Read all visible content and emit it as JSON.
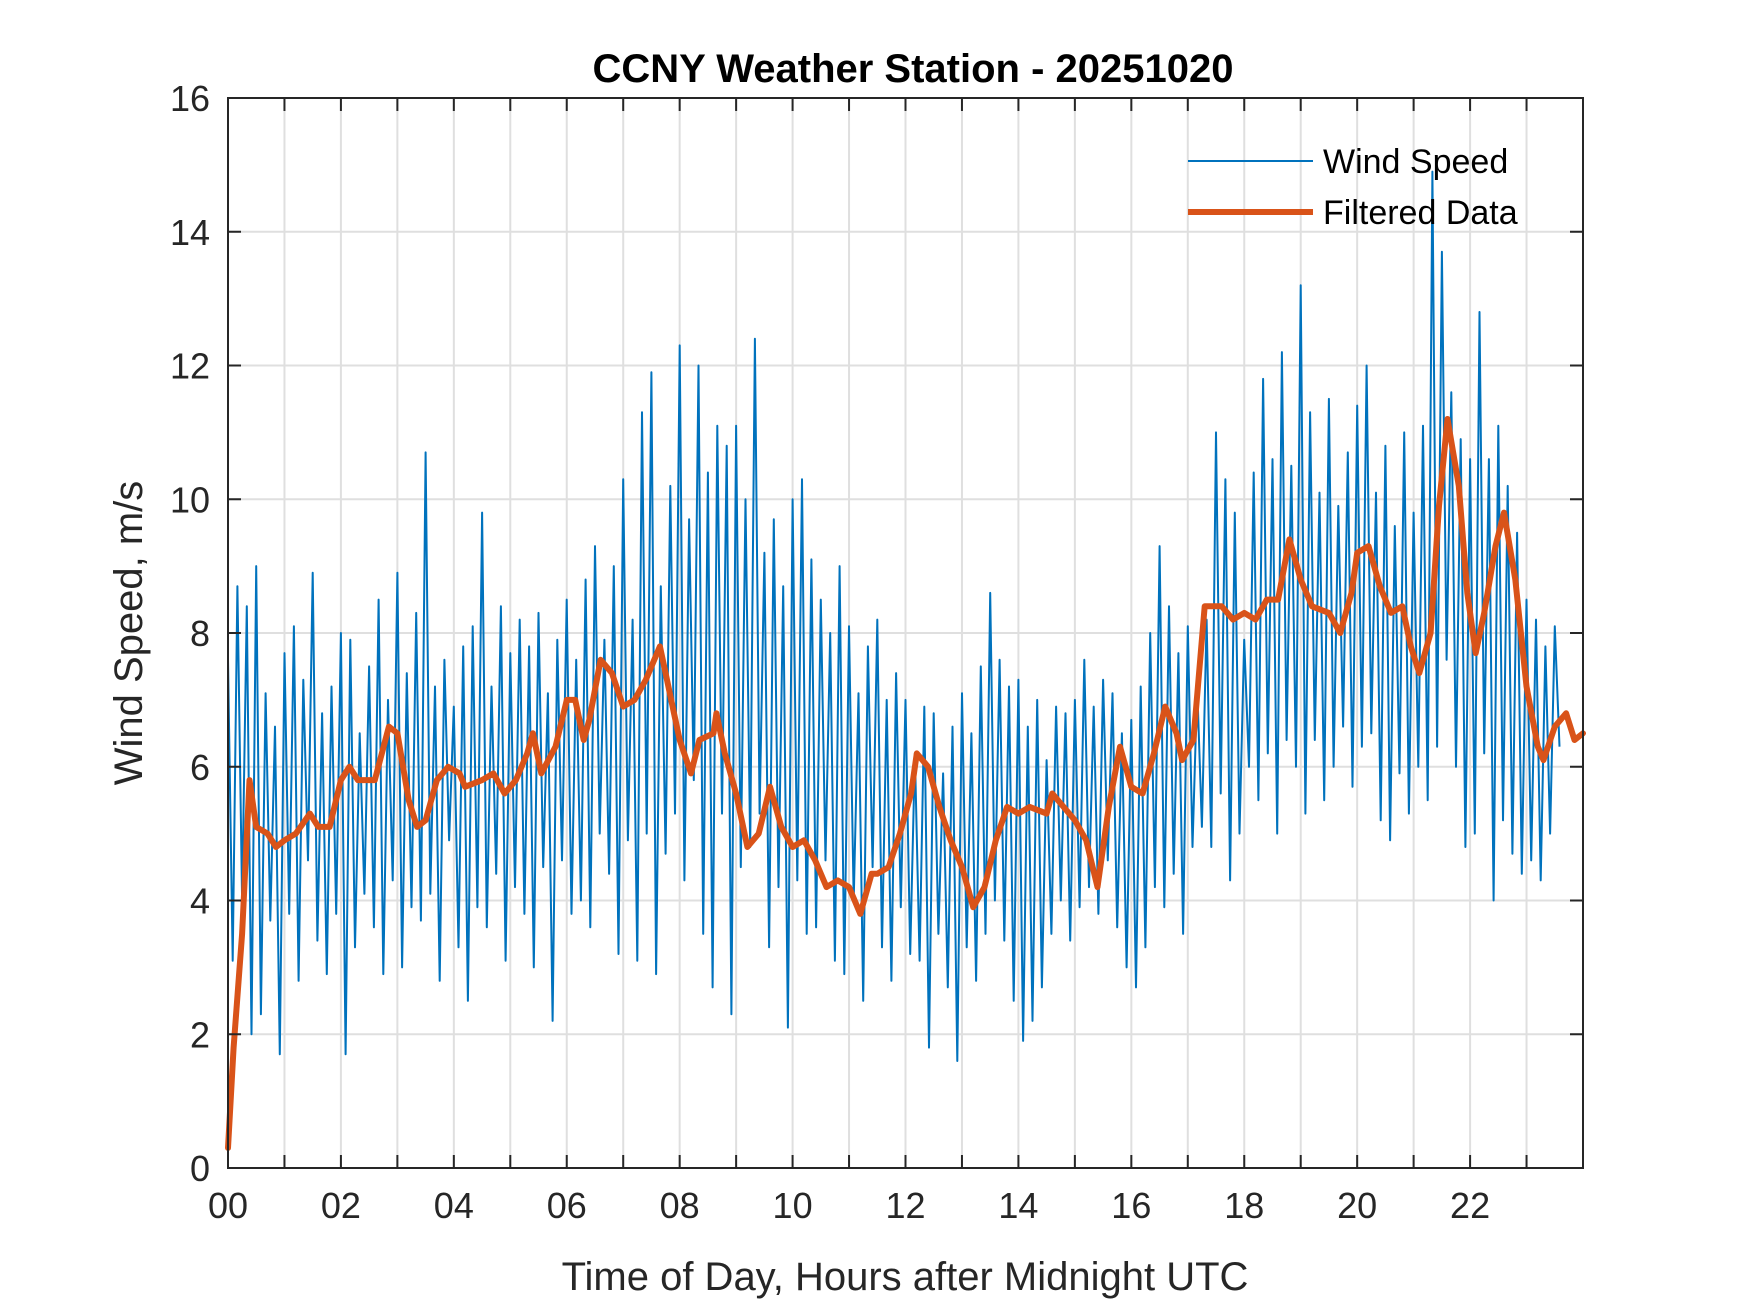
{
  "chart_data": {
    "type": "line",
    "title": "CCNY Weather Station - 20251020",
    "xlabel": "Time of Day, Hours after Midnight UTC",
    "ylabel": "Wind Speed, m/s",
    "xlim": [
      0,
      24
    ],
    "ylim": [
      0,
      16
    ],
    "grid": true,
    "x_ticks": [
      0,
      2,
      4,
      6,
      8,
      10,
      12,
      14,
      16,
      18,
      20,
      22
    ],
    "x_tick_labels": [
      "00",
      "02",
      "04",
      "06",
      "08",
      "10",
      "12",
      "14",
      "16",
      "18",
      "20",
      "22"
    ],
    "x_minor_gridlines_every": 1,
    "y_ticks": [
      0,
      2,
      4,
      6,
      8,
      10,
      12,
      14,
      16
    ],
    "y_tick_labels": [
      "0",
      "2",
      "4",
      "6",
      "8",
      "10",
      "12",
      "14",
      "16"
    ],
    "legend": {
      "placement": "top-right",
      "boxed": false,
      "entries": [
        "Wind Speed",
        "Filtered Data"
      ]
    },
    "series": [
      {
        "name": "Wind Speed",
        "color": "#0072BD",
        "x_start": 0,
        "x_step_hours": 0.0833333,
        "values": [
          7.6,
          3.1,
          8.7,
          4.0,
          8.4,
          2.0,
          9.0,
          2.3,
          7.1,
          3.7,
          6.6,
          1.7,
          7.7,
          3.8,
          8.1,
          2.8,
          7.3,
          4.6,
          8.9,
          3.4,
          6.8,
          2.9,
          7.2,
          3.8,
          8.0,
          1.7,
          7.9,
          3.3,
          6.5,
          4.1,
          7.5,
          3.6,
          8.5,
          2.9,
          7.0,
          4.3,
          8.9,
          3.0,
          7.4,
          3.9,
          8.3,
          3.7,
          10.7,
          4.1,
          7.2,
          2.8,
          7.6,
          4.9,
          6.9,
          3.3,
          7.8,
          2.5,
          8.1,
          3.9,
          9.8,
          3.6,
          7.2,
          4.4,
          8.4,
          3.1,
          7.7,
          4.2,
          8.2,
          3.8,
          7.8,
          3.0,
          8.3,
          4.5,
          7.1,
          2.2,
          7.9,
          4.6,
          8.5,
          3.8,
          7.6,
          4.0,
          8.8,
          3.6,
          9.3,
          5.0,
          7.9,
          4.4,
          9.0,
          3.2,
          10.3,
          4.9,
          8.2,
          3.1,
          11.3,
          5.0,
          11.9,
          2.9,
          8.7,
          4.7,
          10.2,
          5.3,
          12.3,
          4.3,
          9.7,
          5.8,
          12.0,
          3.5,
          10.4,
          2.7,
          11.1,
          5.3,
          10.8,
          2.3,
          11.1,
          4.5,
          10.0,
          4.8,
          12.4,
          5.3,
          9.2,
          3.3,
          9.7,
          4.2,
          8.7,
          2.1,
          10.0,
          4.3,
          10.3,
          3.5,
          9.1,
          3.6,
          8.5,
          4.6,
          8.0,
          3.1,
          9.0,
          2.9,
          8.1,
          4.0,
          7.1,
          2.5,
          7.8,
          4.5,
          8.2,
          3.3,
          7.0,
          2.8,
          7.4,
          3.9,
          7.0,
          3.2,
          6.2,
          3.1,
          6.9,
          1.8,
          6.8,
          3.5,
          5.9,
          2.7,
          6.6,
          1.6,
          7.1,
          3.3,
          6.5,
          2.8,
          7.5,
          3.5,
          8.6,
          4.0,
          7.6,
          3.4,
          7.2,
          2.5,
          7.3,
          1.9,
          6.6,
          2.2,
          7.0,
          2.7,
          6.1,
          3.5,
          6.9,
          4.0,
          6.8,
          3.4,
          7.0,
          3.9,
          7.6,
          4.2,
          6.9,
          3.8,
          7.3,
          4.6,
          7.1,
          3.6,
          6.5,
          3.0,
          6.7,
          2.7,
          7.2,
          3.3,
          8.0,
          4.2,
          9.3,
          3.9,
          8.4,
          4.4,
          7.7,
          3.5,
          8.1,
          4.8,
          7.2,
          5.1,
          8.2,
          4.8,
          11.0,
          5.6,
          10.3,
          4.3,
          9.8,
          5.0,
          7.9,
          6.0,
          10.4,
          5.5,
          11.8,
          6.2,
          10.6,
          5.0,
          12.2,
          6.4,
          10.5,
          6.0,
          13.2,
          5.3,
          11.3,
          6.4,
          10.1,
          5.5,
          11.5,
          6.0,
          9.9,
          6.6,
          10.7,
          5.7,
          11.4,
          6.3,
          12.0,
          6.5,
          10.1,
          5.2,
          10.8,
          4.9,
          9.6,
          5.9,
          11.0,
          5.3,
          9.8,
          6.0,
          11.1,
          5.5,
          14.9,
          6.3,
          13.7,
          7.6,
          11.6,
          6.0,
          10.9,
          4.8,
          10.6,
          5.0,
          12.8,
          6.2,
          10.6,
          4.0,
          11.1,
          5.2,
          10.2,
          4.7,
          9.5,
          4.4,
          8.5,
          4.6,
          8.2,
          4.3,
          7.8,
          5.0,
          8.1,
          6.3
        ]
      },
      {
        "name": "Filtered Data",
        "color": "#D95319",
        "x": [
          0.0,
          0.1,
          0.25,
          0.38,
          0.5,
          0.7,
          0.85,
          1.0,
          1.2,
          1.45,
          1.6,
          1.8,
          2.0,
          2.15,
          2.3,
          2.6,
          2.85,
          3.0,
          3.2,
          3.35,
          3.5,
          3.7,
          3.9,
          4.1,
          4.2,
          4.5,
          4.7,
          4.9,
          5.1,
          5.3,
          5.4,
          5.55,
          5.8,
          6.0,
          6.15,
          6.3,
          6.4,
          6.6,
          6.8,
          7.0,
          7.2,
          7.4,
          7.65,
          7.8,
          7.9,
          8.0,
          8.2,
          8.35,
          8.6,
          8.65,
          8.8,
          8.9,
          9.0,
          9.2,
          9.4,
          9.6,
          9.8,
          10.0,
          10.2,
          10.4,
          10.6,
          10.8,
          11.0,
          11.2,
          11.4,
          11.5,
          11.7,
          11.9,
          12.1,
          12.2,
          12.4,
          12.6,
          12.8,
          13.0,
          13.2,
          13.4,
          13.6,
          13.8,
          14.0,
          14.2,
          14.5,
          14.6,
          14.8,
          15.0,
          15.2,
          15.4,
          15.6,
          15.8,
          16.0,
          16.2,
          16.4,
          16.6,
          16.8,
          16.9,
          17.1,
          17.3,
          17.6,
          17.8,
          18.0,
          18.2,
          18.4,
          18.6,
          18.8,
          19.0,
          19.2,
          19.5,
          19.7,
          19.9,
          20.0,
          20.2,
          20.4,
          20.6,
          20.8,
          20.95,
          21.1,
          21.3,
          21.45,
          21.6,
          21.8,
          21.95,
          22.1,
          22.25,
          22.45,
          22.6,
          22.8,
          23.0,
          23.2,
          23.3,
          23.5,
          23.7,
          23.85,
          24.0
        ],
        "values": [
          0.3,
          1.8,
          3.5,
          5.8,
          5.1,
          5.0,
          4.8,
          4.9,
          5.0,
          5.3,
          5.1,
          5.1,
          5.8,
          6.0,
          5.8,
          5.8,
          6.6,
          6.5,
          5.5,
          5.1,
          5.2,
          5.8,
          6.0,
          5.9,
          5.7,
          5.8,
          5.9,
          5.6,
          5.8,
          6.2,
          6.5,
          5.9,
          6.3,
          7.0,
          7.0,
          6.4,
          6.7,
          7.6,
          7.4,
          6.9,
          7.0,
          7.3,
          7.8,
          7.2,
          6.8,
          6.4,
          5.9,
          6.4,
          6.5,
          6.8,
          6.2,
          5.9,
          5.6,
          4.8,
          5.0,
          5.7,
          5.1,
          4.8,
          4.9,
          4.6,
          4.2,
          4.3,
          4.2,
          3.8,
          4.4,
          4.4,
          4.5,
          5.0,
          5.6,
          6.2,
          6.0,
          5.4,
          4.9,
          4.5,
          3.9,
          4.2,
          4.9,
          5.4,
          5.3,
          5.4,
          5.3,
          5.6,
          5.4,
          5.2,
          4.9,
          4.2,
          5.4,
          6.3,
          5.7,
          5.6,
          6.2,
          6.9,
          6.5,
          6.1,
          6.4,
          8.4,
          8.4,
          8.2,
          8.3,
          8.2,
          8.5,
          8.5,
          9.4,
          8.8,
          8.4,
          8.3,
          8.0,
          8.6,
          9.2,
          9.3,
          8.7,
          8.3,
          8.4,
          7.8,
          7.4,
          8.0,
          9.9,
          11.2,
          10.2,
          8.6,
          7.7,
          8.3,
          9.3,
          9.8,
          8.8,
          7.2,
          6.3,
          6.1,
          6.6,
          6.8,
          6.4,
          6.5
        ]
      }
    ]
  }
}
